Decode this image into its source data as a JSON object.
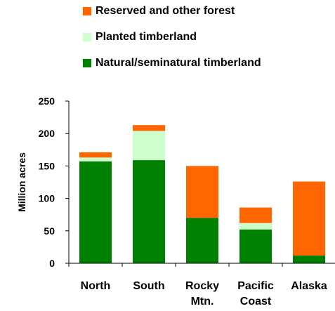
{
  "chart_data": {
    "type": "bar",
    "stacked": true,
    "title": "",
    "xlabel": "",
    "ylabel": "Million acres",
    "ylim": [
      0,
      250
    ],
    "yticks": [
      0,
      50,
      100,
      150,
      200,
      250
    ],
    "grid": false,
    "legend_position": "top",
    "categories": [
      [
        "North"
      ],
      [
        "South"
      ],
      [
        "Rocky",
        "Mtn."
      ],
      [
        "Pacific",
        "Coast"
      ],
      [
        "Alaska"
      ]
    ],
    "series": [
      {
        "name": "Natural/seminatural timberland",
        "color": "#008000",
        "values": [
          157,
          159,
          70,
          52,
          12
        ]
      },
      {
        "name": "Planted timberland",
        "color": "#ccffcc",
        "values": [
          6,
          45,
          0,
          10,
          0
        ]
      },
      {
        "name": "Reserved and other forest",
        "color": "#ff6600",
        "values": [
          8,
          9,
          80,
          24,
          114
        ]
      }
    ],
    "legend_order": [
      2,
      1,
      0
    ]
  }
}
